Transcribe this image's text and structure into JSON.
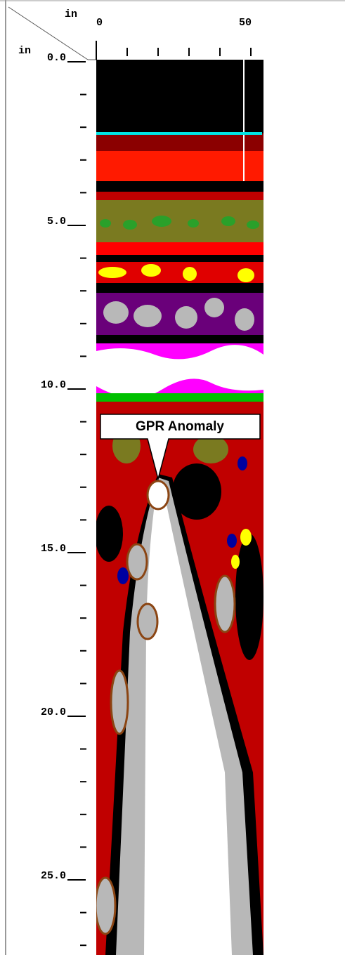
{
  "corner": {
    "x_unit": "in",
    "y_unit": "in"
  },
  "x_axis": {
    "labels": [
      "0",
      "50"
    ]
  },
  "y_axis": {
    "labels": [
      "0.0",
      "5.0",
      "10.0",
      "15.0",
      "20.0",
      "25.0"
    ]
  },
  "annotation": "GPR Anomaly"
}
